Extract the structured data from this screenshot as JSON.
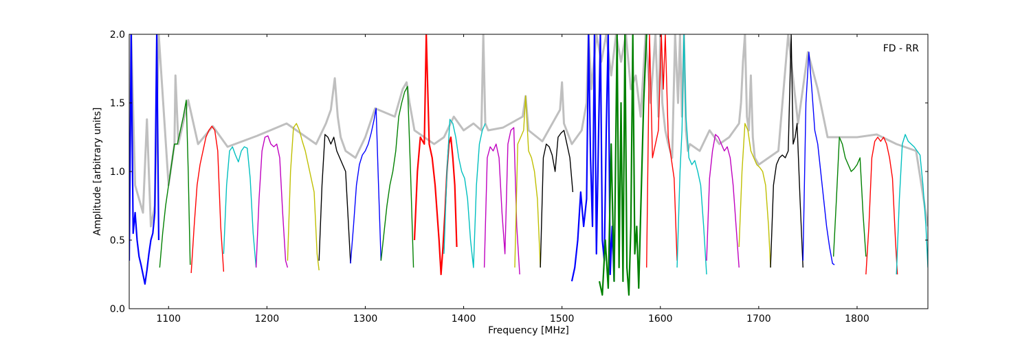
{
  "chart_data": {
    "type": "line",
    "title": "",
    "annotation": "FD - RR",
    "xlabel": "Frequency [MHz]",
    "ylabel": "Amplitude [arbitrary units]",
    "xlim": [
      1060,
      1872
    ],
    "ylim": [
      0.0,
      2.0
    ],
    "xticks": [
      1100,
      1200,
      1300,
      1400,
      1500,
      1600,
      1700,
      1800
    ],
    "yticks": [
      0.0,
      0.5,
      1.0,
      1.5,
      2.0
    ],
    "xtick_labels": [
      "1100",
      "1200",
      "1300",
      "1400",
      "1500",
      "1600",
      "1700",
      "1800"
    ],
    "ytick_labels": [
      "0.0",
      "0.5",
      "1.0",
      "1.5",
      "2.0"
    ],
    "grid": false,
    "legend": "none",
    "colors": {
      "background_envelope": "#bfbfbf",
      "blue": "#0000ff",
      "green": "#008000",
      "red": "#ff0000",
      "cyan": "#00bfbf",
      "magenta": "#bf00bf",
      "yellow": "#bfbf00",
      "black": "#000000"
    },
    "series": [
      {
        "color": "blue",
        "width": 2.2,
        "x": [
          1060,
          1062,
          1064,
          1066,
          1068,
          1070,
          1072,
          1074,
          1076,
          1078,
          1080,
          1082,
          1084,
          1086,
          1088,
          1090
        ],
        "y": [
          0.35,
          2.0,
          0.55,
          0.7,
          0.5,
          0.38,
          0.32,
          0.25,
          0.18,
          0.28,
          0.4,
          0.5,
          0.55,
          0.7,
          2.0,
          0.5
        ]
      },
      {
        "color": "green",
        "width": 1.4,
        "x": [
          1091,
          1094,
          1097,
          1100,
          1103,
          1106,
          1109,
          1112,
          1115,
          1118,
          1120,
          1122
        ],
        "y": [
          0.3,
          0.55,
          0.75,
          0.9,
          1.05,
          1.2,
          1.2,
          1.3,
          1.4,
          1.52,
          1.0,
          0.32
        ]
      },
      {
        "color": "red",
        "width": 1.4,
        "x": [
          1123,
          1126,
          1129,
          1132,
          1135,
          1138,
          1141,
          1144,
          1147,
          1150,
          1153,
          1156
        ],
        "y": [
          0.26,
          0.6,
          0.9,
          1.05,
          1.15,
          1.25,
          1.3,
          1.33,
          1.3,
          1.15,
          0.6,
          0.27
        ]
      },
      {
        "color": "cyan",
        "width": 1.4,
        "x": [
          1156,
          1159,
          1162,
          1165,
          1168,
          1171,
          1174,
          1177,
          1180,
          1183,
          1186,
          1189
        ],
        "y": [
          0.4,
          0.9,
          1.15,
          1.18,
          1.12,
          1.07,
          1.15,
          1.18,
          1.17,
          0.95,
          0.55,
          0.3
        ]
      },
      {
        "color": "magenta",
        "width": 1.4,
        "x": [
          1189,
          1192,
          1195,
          1198,
          1201,
          1204,
          1207,
          1210,
          1213,
          1216,
          1219,
          1221
        ],
        "y": [
          0.3,
          0.8,
          1.15,
          1.25,
          1.26,
          1.2,
          1.18,
          1.2,
          1.1,
          0.7,
          0.35,
          0.3
        ]
      },
      {
        "color": "yellow",
        "width": 1.4,
        "x": [
          1221,
          1224,
          1227,
          1230,
          1233,
          1236,
          1239,
          1242,
          1245,
          1248,
          1251,
          1253
        ],
        "y": [
          0.35,
          1.0,
          1.32,
          1.35,
          1.3,
          1.22,
          1.15,
          1.05,
          0.95,
          0.85,
          0.4,
          0.28
        ]
      },
      {
        "color": "black",
        "width": 1.4,
        "x": [
          1253,
          1256,
          1259,
          1262,
          1265,
          1268,
          1271,
          1274,
          1277,
          1280,
          1283,
          1285
        ],
        "y": [
          0.35,
          0.9,
          1.27,
          1.25,
          1.2,
          1.25,
          1.15,
          1.1,
          1.05,
          1.0,
          0.6,
          0.33
        ]
      },
      {
        "color": "blue",
        "width": 1.4,
        "x": [
          1285,
          1288,
          1291,
          1294,
          1297,
          1300,
          1303,
          1306,
          1309,
          1311,
          1313,
          1316
        ],
        "y": [
          0.33,
          0.6,
          0.9,
          1.05,
          1.12,
          1.15,
          1.2,
          1.28,
          1.38,
          1.46,
          1.0,
          0.35
        ]
      },
      {
        "color": "green",
        "width": 1.4,
        "x": [
          1316,
          1319,
          1322,
          1325,
          1328,
          1331,
          1334,
          1337,
          1340,
          1343,
          1346,
          1349
        ],
        "y": [
          0.35,
          0.55,
          0.75,
          0.9,
          1.0,
          1.15,
          1.4,
          1.5,
          1.58,
          1.62,
          1.0,
          0.3
        ]
      },
      {
        "color": "red",
        "width": 2.2,
        "x": [
          1350,
          1353,
          1356,
          1360,
          1362,
          1365,
          1368,
          1371,
          1373,
          1375,
          1377,
          1379,
          1381,
          1383,
          1385,
          1387,
          1389,
          1391,
          1393
        ],
        "y": [
          0.5,
          1.0,
          1.25,
          1.2,
          2.0,
          1.2,
          1.1,
          0.9,
          0.7,
          0.5,
          0.25,
          0.45,
          0.7,
          1.0,
          1.2,
          1.25,
          1.1,
          0.9,
          0.45
        ]
      },
      {
        "color": "cyan",
        "width": 1.4,
        "x": [
          1380,
          1383,
          1386,
          1389,
          1392,
          1395,
          1398,
          1401,
          1404,
          1407,
          1410,
          1413,
          1416,
          1419,
          1422
        ],
        "y": [
          0.4,
          1.0,
          1.38,
          1.35,
          1.25,
          1.1,
          1.0,
          0.95,
          0.8,
          0.5,
          0.3,
          0.9,
          1.2,
          1.3,
          1.35
        ]
      },
      {
        "color": "magenta",
        "width": 1.4,
        "x": [
          1421,
          1424,
          1427,
          1430,
          1433,
          1436,
          1439,
          1442,
          1445,
          1448,
          1451,
          1454,
          1457
        ],
        "y": [
          0.3,
          1.1,
          1.18,
          1.15,
          1.2,
          1.1,
          0.7,
          0.4,
          1.2,
          1.3,
          1.32,
          0.6,
          0.25
        ]
      },
      {
        "color": "yellow",
        "width": 1.4,
        "x": [
          1452,
          1455,
          1458,
          1461,
          1463,
          1466,
          1469,
          1472,
          1475,
          1478
        ],
        "y": [
          0.3,
          1.2,
          1.25,
          1.3,
          1.55,
          1.15,
          1.1,
          1.0,
          0.8,
          0.3
        ]
      },
      {
        "color": "black",
        "width": 1.4,
        "x": [
          1478,
          1481,
          1484,
          1487,
          1490,
          1493,
          1496,
          1499,
          1502,
          1505,
          1508,
          1511
        ],
        "y": [
          0.3,
          1.1,
          1.2,
          1.18,
          1.12,
          1.0,
          1.25,
          1.28,
          1.3,
          1.2,
          1.1,
          0.85
        ]
      },
      {
        "color": "blue",
        "width": 2.2,
        "x": [
          1510,
          1513,
          1516,
          1519,
          1522,
          1525,
          1527,
          1529,
          1531,
          1533,
          1535,
          1537,
          1539,
          1541,
          1543,
          1545,
          1547,
          1549,
          1551,
          1553
        ],
        "y": [
          0.2,
          0.3,
          0.5,
          0.85,
          0.6,
          0.8,
          2.0,
          1.1,
          0.6,
          2.0,
          0.4,
          1.2,
          2.0,
          0.5,
          0.35,
          1.3,
          2.0,
          0.25,
          0.6,
          0.2
        ]
      },
      {
        "color": "green",
        "width": 2.2,
        "x": [
          1538,
          1541,
          1544,
          1547,
          1550,
          1553,
          1556,
          1558,
          1560,
          1562,
          1564,
          1566,
          1568,
          1570,
          1572,
          1574,
          1576,
          1578,
          1580,
          1583,
          1586
        ],
        "y": [
          0.2,
          0.1,
          0.5,
          0.15,
          1.2,
          0.2,
          2.0,
          0.3,
          1.5,
          0.2,
          2.0,
          0.3,
          0.1,
          0.6,
          2.0,
          0.4,
          0.6,
          0.15,
          0.7,
          1.5,
          2.0
        ]
      },
      {
        "color": "red",
        "width": 1.4,
        "x": [
          1586,
          1589,
          1592,
          1595,
          1598,
          1601,
          1603,
          1605,
          1608,
          1611,
          1614,
          1617
        ],
        "y": [
          0.3,
          2.0,
          1.1,
          1.2,
          1.3,
          2.0,
          1.6,
          2.0,
          1.25,
          1.1,
          0.95,
          0.35
        ]
      },
      {
        "color": "cyan",
        "width": 1.4,
        "x": [
          1617,
          1620,
          1622,
          1624,
          1626,
          1629,
          1632,
          1635,
          1638,
          1641,
          1644,
          1647
        ],
        "y": [
          0.3,
          1.0,
          1.3,
          2.0,
          1.4,
          1.1,
          1.05,
          1.08,
          1.0,
          0.9,
          0.6,
          0.25
        ]
      },
      {
        "color": "magenta",
        "width": 1.4,
        "x": [
          1647,
          1650,
          1653,
          1656,
          1659,
          1662,
          1665,
          1668,
          1671,
          1674,
          1677,
          1680
        ],
        "y": [
          0.35,
          0.95,
          1.15,
          1.27,
          1.25,
          1.2,
          1.15,
          1.18,
          1.1,
          0.9,
          0.6,
          0.3
        ]
      },
      {
        "color": "yellow",
        "width": 1.4,
        "x": [
          1680,
          1683,
          1686,
          1689,
          1692,
          1695,
          1698,
          1701,
          1704,
          1707,
          1710,
          1712
        ],
        "y": [
          0.45,
          1.0,
          1.35,
          1.3,
          1.15,
          1.1,
          1.05,
          1.03,
          1.0,
          0.9,
          0.6,
          0.3
        ]
      },
      {
        "color": "black",
        "width": 1.4,
        "x": [
          1712,
          1715,
          1718,
          1721,
          1724,
          1727,
          1730,
          1733,
          1735,
          1737,
          1739,
          1742,
          1745
        ],
        "y": [
          0.3,
          0.9,
          1.05,
          1.1,
          1.12,
          1.1,
          1.15,
          2.0,
          1.2,
          1.25,
          1.35,
          0.8,
          0.3
        ]
      },
      {
        "color": "blue",
        "width": 1.4,
        "x": [
          1745,
          1748,
          1751,
          1754,
          1757,
          1760,
          1763,
          1766,
          1769,
          1772,
          1775,
          1777
        ],
        "y": [
          0.35,
          1.5,
          1.87,
          1.6,
          1.3,
          1.2,
          1.0,
          0.8,
          0.6,
          0.45,
          0.33,
          0.32
        ]
      },
      {
        "color": "green",
        "width": 1.4,
        "x": [
          1776,
          1779,
          1782,
          1785,
          1788,
          1791,
          1794,
          1797,
          1800,
          1803,
          1806,
          1809
        ],
        "y": [
          0.38,
          0.8,
          1.25,
          1.2,
          1.1,
          1.05,
          1.0,
          1.02,
          1.05,
          1.1,
          0.7,
          0.38
        ]
      },
      {
        "color": "red",
        "width": 1.4,
        "x": [
          1809,
          1812,
          1815,
          1818,
          1821,
          1824,
          1827,
          1830,
          1833,
          1836,
          1839,
          1841
        ],
        "y": [
          0.25,
          0.6,
          1.1,
          1.22,
          1.25,
          1.22,
          1.25,
          1.2,
          1.1,
          0.95,
          0.5,
          0.25
        ]
      },
      {
        "color": "cyan",
        "width": 1.4,
        "x": [
          1840,
          1843,
          1846,
          1849,
          1852,
          1855,
          1858,
          1861,
          1864,
          1867,
          1870,
          1872
        ],
        "y": [
          0.25,
          0.8,
          1.2,
          1.27,
          1.22,
          1.2,
          1.18,
          1.15,
          1.12,
          0.9,
          0.6,
          0.3
        ]
      }
    ],
    "envelope": {
      "x": [
        1060,
        1062,
        1066,
        1070,
        1074,
        1078,
        1082,
        1086,
        1090,
        1100,
        1106,
        1107,
        1110,
        1120,
        1130,
        1145,
        1160,
        1190,
        1220,
        1250,
        1260,
        1265,
        1269,
        1272,
        1275,
        1280,
        1290,
        1300,
        1310,
        1330,
        1338,
        1342,
        1345,
        1350,
        1360,
        1370,
        1380,
        1390,
        1400,
        1410,
        1418,
        1420,
        1422,
        1425,
        1440,
        1460,
        1463,
        1466,
        1480,
        1498,
        1500,
        1502,
        1510,
        1515,
        1520,
        1525,
        1527,
        1530,
        1535,
        1540,
        1545,
        1550,
        1555,
        1560,
        1565,
        1570,
        1575,
        1580,
        1585,
        1590,
        1595,
        1598,
        1600,
        1602,
        1605,
        1608,
        1612,
        1615,
        1618,
        1620,
        1622,
        1624,
        1626,
        1628,
        1630,
        1640,
        1650,
        1660,
        1670,
        1680,
        1682,
        1684,
        1686,
        1688,
        1690,
        1692,
        1694,
        1696,
        1700,
        1710,
        1720,
        1730,
        1740,
        1750,
        1760,
        1770,
        1780,
        1800,
        1820,
        1840,
        1860,
        1872
      ],
      "y": [
        0.6,
        2.0,
        0.9,
        0.8,
        0.7,
        1.38,
        0.6,
        0.75,
        2.0,
        0.9,
        1.2,
        1.7,
        1.2,
        1.52,
        1.2,
        1.33,
        1.18,
        1.26,
        1.35,
        1.2,
        1.35,
        1.45,
        1.68,
        1.4,
        1.25,
        1.15,
        1.1,
        1.25,
        1.46,
        1.4,
        1.6,
        1.65,
        1.5,
        1.3,
        1.25,
        1.2,
        1.25,
        1.4,
        1.3,
        1.35,
        1.3,
        2.0,
        1.35,
        1.3,
        1.32,
        1.4,
        1.55,
        1.3,
        1.22,
        1.45,
        1.65,
        1.35,
        1.2,
        1.25,
        1.3,
        1.5,
        2.0,
        1.6,
        2.0,
        1.8,
        2.0,
        1.7,
        2.0,
        1.8,
        2.0,
        1.6,
        1.7,
        1.4,
        2.0,
        1.5,
        2.0,
        1.4,
        2.0,
        1.5,
        1.3,
        1.2,
        1.1,
        2.0,
        1.5,
        2.0,
        1.4,
        2.0,
        1.3,
        1.15,
        1.2,
        1.15,
        1.3,
        1.2,
        1.25,
        1.35,
        1.5,
        1.8,
        2.0,
        1.4,
        1.3,
        1.7,
        1.25,
        1.1,
        1.05,
        1.1,
        1.15,
        2.0,
        1.35,
        1.87,
        1.6,
        1.25,
        1.25,
        1.25,
        1.27,
        1.2,
        1.15,
        0.6
      ]
    }
  }
}
